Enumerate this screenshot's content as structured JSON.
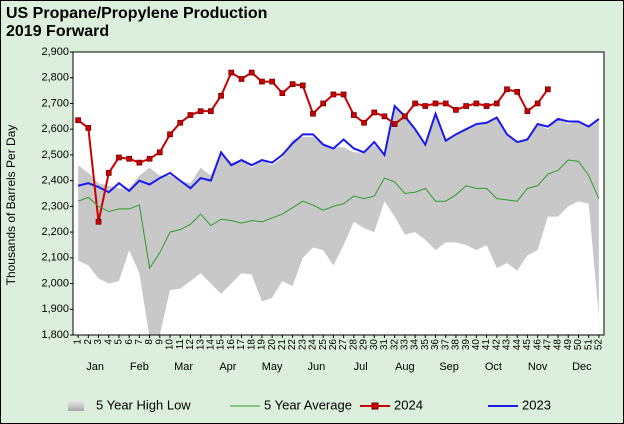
{
  "chart_data": {
    "type": "line",
    "title": "US Propane/Propylene Production",
    "subtitle": "2019 Forward",
    "y_label": "Thousands of Barrels Per Day",
    "x": [
      1,
      2,
      3,
      4,
      5,
      6,
      7,
      8,
      9,
      10,
      11,
      12,
      13,
      14,
      15,
      16,
      17,
      18,
      19,
      20,
      21,
      22,
      23,
      24,
      25,
      26,
      27,
      28,
      29,
      30,
      31,
      32,
      33,
      34,
      35,
      36,
      37,
      38,
      39,
      40,
      41,
      42,
      43,
      44,
      45,
      46,
      47,
      48,
      49,
      50,
      51,
      52
    ],
    "xlim": [
      0.5,
      52.5
    ],
    "month_labels": [
      "Jan",
      "Feb",
      "Mar",
      "Apr",
      "May",
      "Jun",
      "Jul",
      "Aug",
      "Sep",
      "Oct",
      "Nov",
      "Dec"
    ],
    "ylim": [
      1800,
      2900
    ],
    "yticks": [
      {
        "value": 1800,
        "label": "1,800"
      },
      {
        "value": 1900,
        "label": "1,900"
      },
      {
        "value": 2000,
        "label": "2,000"
      },
      {
        "value": 2100,
        "label": "2,100"
      },
      {
        "value": 2200,
        "label": "2,200"
      },
      {
        "value": 2300,
        "label": "2,300"
      },
      {
        "value": 2400,
        "label": "2,400"
      },
      {
        "value": 2500,
        "label": "2,500"
      },
      {
        "value": 2600,
        "label": "2,600"
      },
      {
        "value": 2700,
        "label": "2,700"
      },
      {
        "value": 2800,
        "label": "2,800"
      },
      {
        "value": 2900,
        "label": "2,900"
      }
    ],
    "grid": false,
    "legend": "bottom",
    "series": [
      {
        "name": "5 Year High Low",
        "color": "#c8c8c8",
        "high": [
          2460,
          2430,
          2390,
          2380,
          2370,
          2370,
          2420,
          2450,
          2420,
          2420,
          2400,
          2390,
          2450,
          2420,
          2510,
          2470,
          2480,
          2450,
          2480,
          2460,
          2490,
          2560,
          2570,
          2570,
          2540,
          2530,
          2530,
          2510,
          2510,
          2540,
          2500,
          2690,
          2660,
          2600,
          2540,
          2660,
          2550,
          2580,
          2600,
          2620,
          2620,
          2640,
          2580,
          2550,
          2560,
          2620,
          2600,
          2640,
          2620,
          2630,
          2610,
          2640
        ],
        "low": [
          2090,
          2070,
          2020,
          2000,
          2010,
          2130,
          2040,
          1790,
          1800,
          1975,
          1980,
          2010,
          2040,
          2000,
          1960,
          2000,
          2040,
          2035,
          1930,
          1945,
          2010,
          1990,
          2100,
          2140,
          2130,
          2070,
          2150,
          2240,
          2215,
          2200,
          2320,
          2260,
          2190,
          2200,
          2170,
          2130,
          2160,
          2160,
          2150,
          2130,
          2150,
          2060,
          2080,
          2050,
          2110,
          2130,
          2260,
          2260,
          2300,
          2320,
          2310,
          1870
        ]
      },
      {
        "name": "5 Year Average",
        "color": "#2e9a2e",
        "values": [
          2320,
          2335,
          2300,
          2280,
          2290,
          2290,
          2305,
          2060,
          2120,
          2200,
          2210,
          2230,
          2270,
          2225,
          2250,
          2245,
          2235,
          2245,
          2240,
          2255,
          2270,
          2295,
          2320,
          2305,
          2285,
          2300,
          2310,
          2340,
          2330,
          2340,
          2410,
          2395,
          2350,
          2355,
          2370,
          2320,
          2320,
          2345,
          2380,
          2370,
          2370,
          2330,
          2325,
          2320,
          2370,
          2380,
          2425,
          2440,
          2480,
          2475,
          2420,
          2330
        ]
      },
      {
        "name": "2024",
        "color": "#cc0000",
        "values": [
          2635,
          2605,
          2240,
          2430,
          2490,
          2485,
          2470,
          2485,
          2510,
          2580,
          2625,
          2655,
          2670,
          2670,
          2730,
          2820,
          2795,
          2820,
          2785,
          2785,
          2740,
          2775,
          2770,
          2660,
          2700,
          2735,
          2735,
          2655,
          2625,
          2665,
          2650,
          2620,
          2650,
          2700,
          2690,
          2700,
          2700,
          2675,
          2690,
          2700,
          2690,
          2700,
          2755,
          2745,
          2670,
          2700,
          2755,
          null,
          null,
          null,
          null,
          null
        ]
      },
      {
        "name": "2023",
        "color": "#1a1aee",
        "values": [
          2380,
          2390,
          2375,
          2355,
          2390,
          2360,
          2400,
          2385,
          2410,
          2430,
          2400,
          2370,
          2410,
          2400,
          2510,
          2460,
          2480,
          2460,
          2480,
          2470,
          2500,
          2545,
          2580,
          2580,
          2540,
          2525,
          2560,
          2525,
          2510,
          2550,
          2500,
          2690,
          2650,
          2600,
          2540,
          2660,
          2555,
          2580,
          2600,
          2620,
          2625,
          2645,
          2580,
          2550,
          2560,
          2620,
          2610,
          2640,
          2630,
          2630,
          2610,
          2640
        ]
      }
    ]
  }
}
